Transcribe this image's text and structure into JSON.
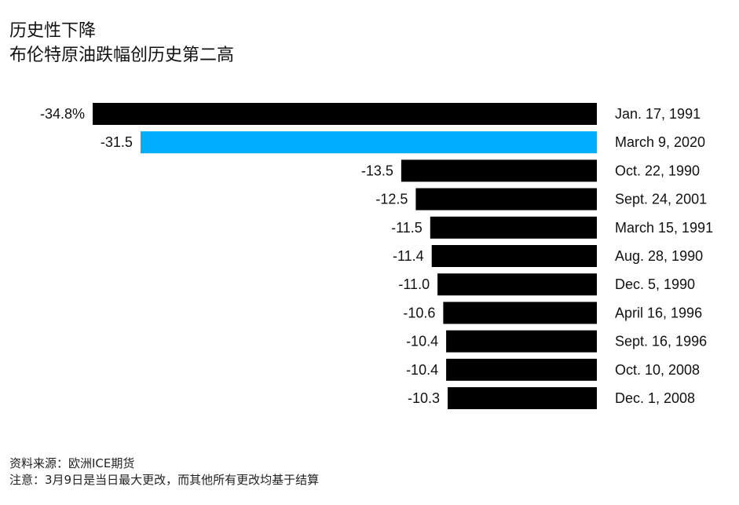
{
  "title": "历史性下降",
  "subtitle": "布伦特原油跌幅创历史第二高",
  "chart_data": {
    "type": "bar",
    "orientation": "horizontal",
    "categories": [
      "Jan. 17, 1991",
      "March 9, 2020",
      "Oct. 22, 1990",
      "Sept. 24, 2001",
      "March 15, 1991",
      "Aug. 28, 1990",
      "Dec. 5, 1990",
      "April 16, 1996",
      "Sept. 16, 1996",
      "Oct. 10, 2008",
      "Dec. 1, 2008"
    ],
    "values": [
      -34.8,
      -31.5,
      -13.5,
      -12.5,
      -11.5,
      -11.4,
      -11.0,
      -10.6,
      -10.4,
      -10.4,
      -10.3
    ],
    "value_labels": [
      "-34.8%",
      "-31.5",
      "-13.5",
      "-12.5",
      "-11.5",
      "-11.4",
      "-11.0",
      "-10.6",
      "-10.4",
      "-10.4",
      "-10.3"
    ],
    "bar_colors": [
      "#000000",
      "#00aeff",
      "#000000",
      "#000000",
      "#000000",
      "#000000",
      "#000000",
      "#000000",
      "#000000",
      "#000000",
      "#000000"
    ],
    "xlim": [
      -35,
      0
    ],
    "grid": false,
    "legend": "none"
  },
  "footer": {
    "source": "资料来源：欧洲ICE期货",
    "note": "注意：3月9日是当日最大更改，而其他所有更改均基于结算"
  }
}
